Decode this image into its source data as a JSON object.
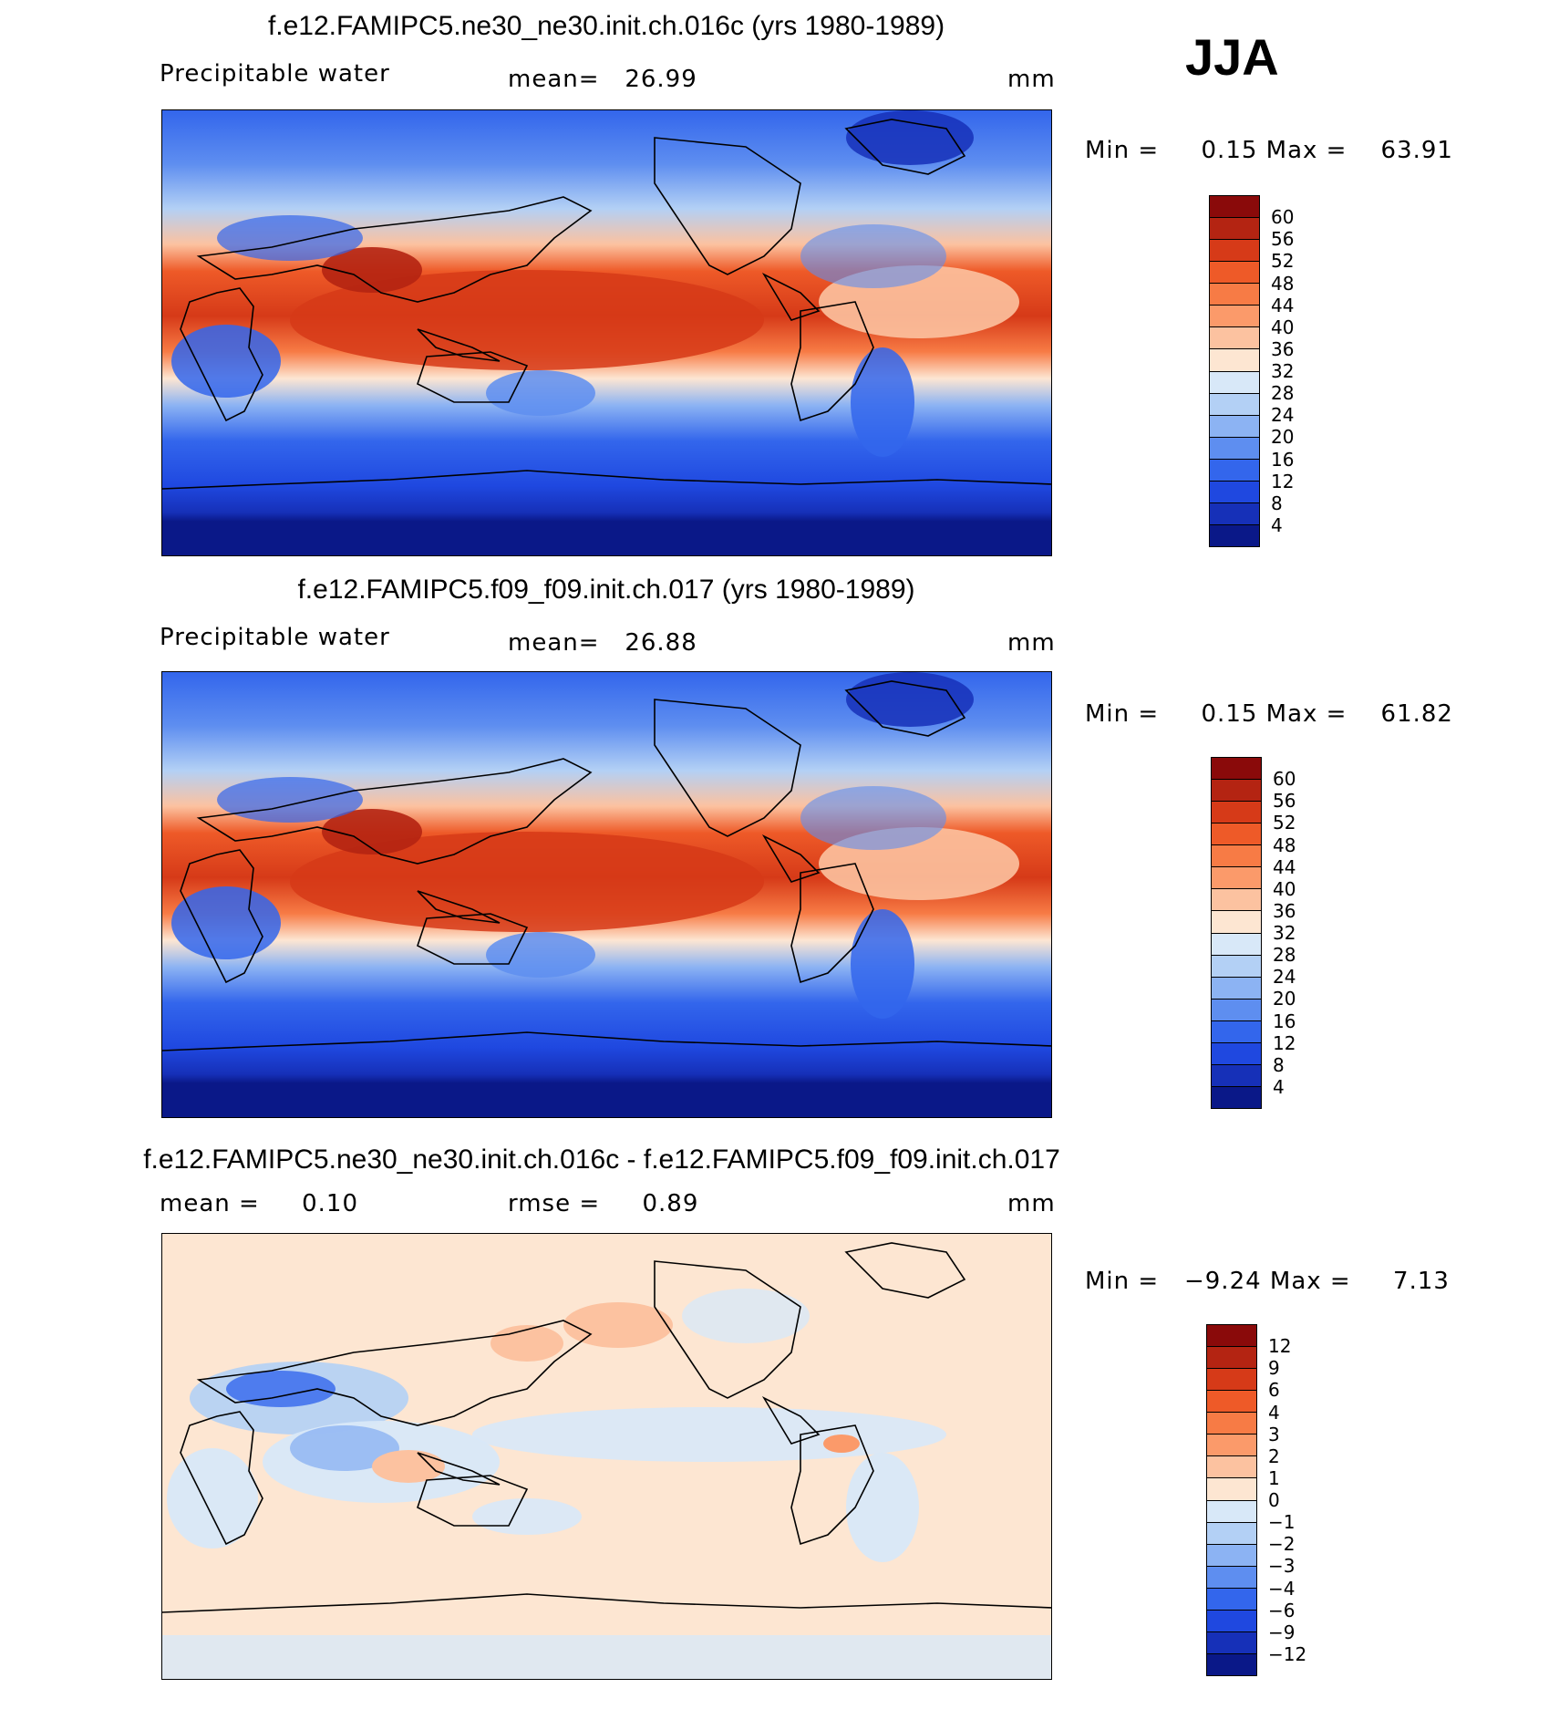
{
  "season": "JJA",
  "panels": [
    {
      "title": "f.e12.FAMIPC5.ne30_ne30.init.ch.016c (yrs 1980-1989)",
      "left_label": "Precipitable water",
      "mid_label": "mean=   26.99",
      "right_label": "mm",
      "minmax": "Min =     0.15 Max =    63.91",
      "colorbar": {
        "ticks": [
          "60",
          "56",
          "52",
          "48",
          "44",
          "40",
          "36",
          "32",
          "28",
          "24",
          "20",
          "16",
          "12",
          "8",
          "4"
        ],
        "colors": [
          "#8a0a0a",
          "#b42412",
          "#d63a18",
          "#ee5a28",
          "#f77b45",
          "#fb9a6a",
          "#fcc2a0",
          "#fde6d2",
          "#d8e8f8",
          "#b3d0f5",
          "#8cb3f3",
          "#5e8ef0",
          "#3366ec",
          "#1f48e0",
          "#1630b8",
          "#0a1888"
        ]
      }
    },
    {
      "title": "f.e12.FAMIPC5.f09_f09.init.ch.017 (yrs 1980-1989)",
      "left_label": "Precipitable water",
      "mid_label": "mean=   26.88",
      "right_label": "mm",
      "minmax": "Min =     0.15 Max =    61.82",
      "colorbar": {
        "ticks": [
          "60",
          "56",
          "52",
          "48",
          "44",
          "40",
          "36",
          "32",
          "28",
          "24",
          "20",
          "16",
          "12",
          "8",
          "4"
        ],
        "colors": [
          "#8a0a0a",
          "#b42412",
          "#d63a18",
          "#ee5a28",
          "#f77b45",
          "#fb9a6a",
          "#fcc2a0",
          "#fde6d2",
          "#d8e8f8",
          "#b3d0f5",
          "#8cb3f3",
          "#5e8ef0",
          "#3366ec",
          "#1f48e0",
          "#1630b8",
          "#0a1888"
        ]
      }
    },
    {
      "title": "f.e12.FAMIPC5.ne30_ne30.init.ch.016c - f.e12.FAMIPC5.f09_f09.init.ch.017",
      "left_label": "mean =     0.10",
      "mid_label": "rmse =     0.89",
      "right_label": "mm",
      "minmax": "Min =   −9.24 Max =     7.13",
      "colorbar": {
        "ticks": [
          "12",
          "9",
          "6",
          "4",
          "3",
          "2",
          "1",
          "0",
          "−1",
          "−2",
          "−3",
          "−4",
          "−6",
          "−9",
          "−12"
        ],
        "colors": [
          "#8a0a0a",
          "#b42412",
          "#d63a18",
          "#ee5a28",
          "#f77b45",
          "#fb9a6a",
          "#fcc2a0",
          "#fde6d2",
          "#d8e8f8",
          "#b3d0f5",
          "#8cb3f3",
          "#5e8ef0",
          "#3366ec",
          "#1f48e0",
          "#1630b8",
          "#0a1888"
        ]
      }
    }
  ]
}
